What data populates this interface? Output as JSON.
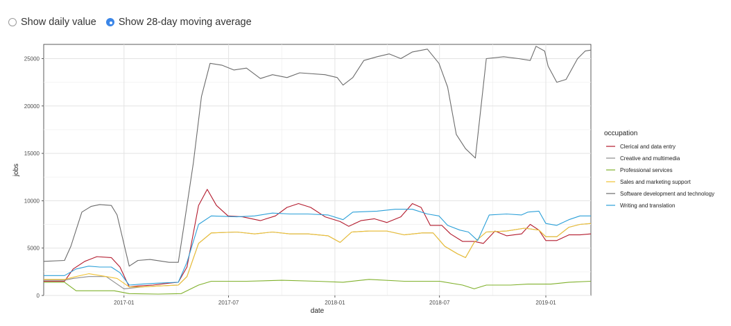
{
  "controls": {
    "options": [
      {
        "label": "Show daily value",
        "selected": false
      },
      {
        "label": "Show 28-day moving average",
        "selected": true
      }
    ]
  },
  "chart_data": {
    "type": "line",
    "xlabel": "date",
    "ylabel": "jobs",
    "legend_title": "occupation",
    "legend_position": "right",
    "grid": true,
    "xlim": [
      "2016-08-15",
      "2019-03-20"
    ],
    "ylim": [
      0,
      26500
    ],
    "x_ticks": [
      {
        "value": "2017-01-01",
        "label": "2017-01"
      },
      {
        "value": "2017-07-01",
        "label": "2017-07"
      },
      {
        "value": "2018-01-01",
        "label": "2018-01"
      },
      {
        "value": "2018-07-01",
        "label": "2018-07"
      },
      {
        "value": "2019-01-01",
        "label": "2019-01"
      }
    ],
    "y_ticks": [
      0,
      5000,
      10000,
      15000,
      20000,
      25000
    ],
    "series": [
      {
        "name": "Clerical and data entry",
        "color": "#b2182b",
        "points": [
          [
            "2016-08-15",
            1500
          ],
          [
            "2016-09-20",
            1500
          ],
          [
            "2016-10-05",
            2800
          ],
          [
            "2016-10-25",
            3600
          ],
          [
            "2016-11-15",
            4100
          ],
          [
            "2016-12-10",
            4000
          ],
          [
            "2016-12-25",
            3000
          ],
          [
            "2017-01-10",
            900
          ],
          [
            "2017-01-25",
            1000
          ],
          [
            "2017-02-20",
            1100
          ],
          [
            "2017-03-20",
            1300
          ],
          [
            "2017-04-05",
            1400
          ],
          [
            "2017-04-20",
            3000
          ],
          [
            "2017-05-10",
            9500
          ],
          [
            "2017-05-25",
            11200
          ],
          [
            "2017-06-10",
            9500
          ],
          [
            "2017-06-30",
            8400
          ],
          [
            "2017-07-25",
            8300
          ],
          [
            "2017-08-25",
            7900
          ],
          [
            "2017-09-20",
            8400
          ],
          [
            "2017-10-10",
            9300
          ],
          [
            "2017-10-30",
            9700
          ],
          [
            "2017-11-20",
            9300
          ],
          [
            "2017-12-15",
            8300
          ],
          [
            "2018-01-10",
            7800
          ],
          [
            "2018-01-25",
            7300
          ],
          [
            "2018-02-15",
            7900
          ],
          [
            "2018-03-10",
            8100
          ],
          [
            "2018-04-01",
            7700
          ],
          [
            "2018-04-25",
            8300
          ],
          [
            "2018-05-15",
            9700
          ],
          [
            "2018-05-30",
            9300
          ],
          [
            "2018-06-15",
            7400
          ],
          [
            "2018-07-05",
            7400
          ],
          [
            "2018-07-20",
            6500
          ],
          [
            "2018-08-10",
            5700
          ],
          [
            "2018-08-30",
            5700
          ],
          [
            "2018-09-15",
            5500
          ],
          [
            "2018-10-05",
            6800
          ],
          [
            "2018-10-25",
            6300
          ],
          [
            "2018-11-20",
            6500
          ],
          [
            "2018-12-05",
            7500
          ],
          [
            "2018-12-20",
            6900
          ],
          [
            "2019-01-01",
            5800
          ],
          [
            "2019-01-20",
            5800
          ],
          [
            "2019-02-10",
            6400
          ],
          [
            "2019-03-01",
            6400
          ],
          [
            "2019-03-20",
            6500
          ]
        ]
      },
      {
        "name": "Creative and multimedia",
        "color": "#8c8c8c",
        "points": [
          [
            "2016-08-15",
            1600
          ],
          [
            "2016-09-20",
            1600
          ],
          [
            "2016-10-05",
            1800
          ],
          [
            "2016-11-01",
            2000
          ],
          [
            "2016-12-01",
            2000
          ],
          [
            "2017-01-01",
            700
          ],
          [
            "2017-02-01",
            900
          ],
          [
            "2017-03-01",
            1000
          ],
          [
            "2017-04-05",
            1100
          ],
          [
            "2017-04-20",
            2000
          ],
          [
            "2017-05-10",
            5500
          ],
          [
            "2017-06-01",
            6600
          ],
          [
            "2017-07-15",
            6700
          ],
          [
            "2017-08-15",
            6500
          ],
          [
            "2017-09-15",
            6700
          ],
          [
            "2017-10-15",
            6500
          ],
          [
            "2017-11-15",
            6500
          ],
          [
            "2017-12-20",
            6300
          ],
          [
            "2018-01-10",
            5600
          ],
          [
            "2018-01-30",
            6700
          ],
          [
            "2018-03-01",
            6800
          ],
          [
            "2018-04-01",
            6800
          ],
          [
            "2018-05-01",
            6400
          ],
          [
            "2018-06-01",
            6600
          ],
          [
            "2018-06-20",
            6600
          ],
          [
            "2018-07-10",
            5200
          ],
          [
            "2018-08-01",
            4400
          ],
          [
            "2018-08-15",
            4000
          ],
          [
            "2018-08-30",
            5600
          ],
          [
            "2018-09-20",
            6700
          ],
          [
            "2018-10-25",
            6800
          ],
          [
            "2018-11-25",
            7100
          ],
          [
            "2018-12-20",
            6900
          ],
          [
            "2019-01-01",
            6200
          ],
          [
            "2019-01-20",
            6200
          ],
          [
            "2019-02-10",
            7200
          ],
          [
            "2019-03-01",
            7500
          ],
          [
            "2019-03-20",
            7600
          ]
        ]
      },
      {
        "name": "Professional services",
        "color": "#7fb02a",
        "points": [
          [
            "2016-08-15",
            1400
          ],
          [
            "2016-09-20",
            1400
          ],
          [
            "2016-10-10",
            500
          ],
          [
            "2016-12-15",
            500
          ],
          [
            "2017-01-10",
            200
          ],
          [
            "2017-03-01",
            150
          ],
          [
            "2017-04-10",
            200
          ],
          [
            "2017-05-10",
            1100
          ],
          [
            "2017-06-01",
            1500
          ],
          [
            "2017-08-01",
            1500
          ],
          [
            "2017-10-01",
            1600
          ],
          [
            "2017-12-01",
            1500
          ],
          [
            "2018-01-15",
            1400
          ],
          [
            "2018-03-01",
            1700
          ],
          [
            "2018-05-01",
            1500
          ],
          [
            "2018-07-01",
            1500
          ],
          [
            "2018-08-10",
            1100
          ],
          [
            "2018-08-30",
            700
          ],
          [
            "2018-09-20",
            1100
          ],
          [
            "2018-11-01",
            1100
          ],
          [
            "2018-12-01",
            1200
          ],
          [
            "2019-01-10",
            1200
          ],
          [
            "2019-02-10",
            1400
          ],
          [
            "2019-03-20",
            1500
          ]
        ]
      },
      {
        "name": "Sales and marketing support",
        "color": "#f1c232",
        "points": [
          [
            "2016-08-15",
            1700
          ],
          [
            "2016-09-20",
            1700
          ],
          [
            "2016-10-10",
            2000
          ],
          [
            "2016-11-01",
            2300
          ],
          [
            "2016-12-01",
            2000
          ],
          [
            "2016-12-20",
            1800
          ],
          [
            "2017-01-10",
            900
          ],
          [
            "2017-02-01",
            900
          ],
          [
            "2017-03-01",
            1000
          ],
          [
            "2017-04-05",
            1100
          ],
          [
            "2017-04-20",
            2000
          ],
          [
            "2017-05-10",
            5500
          ],
          [
            "2017-06-01",
            6600
          ],
          [
            "2017-07-15",
            6700
          ],
          [
            "2017-08-15",
            6500
          ],
          [
            "2017-09-15",
            6700
          ],
          [
            "2017-10-15",
            6500
          ],
          [
            "2017-11-15",
            6500
          ],
          [
            "2017-12-20",
            6300
          ],
          [
            "2018-01-10",
            5600
          ],
          [
            "2018-01-30",
            6700
          ],
          [
            "2018-03-01",
            6800
          ],
          [
            "2018-04-01",
            6800
          ],
          [
            "2018-05-01",
            6400
          ],
          [
            "2018-06-01",
            6600
          ],
          [
            "2018-06-20",
            6600
          ],
          [
            "2018-07-10",
            5200
          ],
          [
            "2018-08-01",
            4400
          ],
          [
            "2018-08-15",
            4000
          ],
          [
            "2018-08-30",
            5600
          ],
          [
            "2018-09-20",
            6700
          ],
          [
            "2018-10-25",
            6800
          ],
          [
            "2018-11-25",
            7100
          ],
          [
            "2018-12-20",
            6900
          ],
          [
            "2019-01-01",
            6200
          ],
          [
            "2019-01-20",
            6200
          ],
          [
            "2019-02-10",
            7200
          ],
          [
            "2019-03-01",
            7500
          ],
          [
            "2019-03-20",
            7600
          ]
        ]
      },
      {
        "name": "Software development and technology",
        "color": "#6b6b6b",
        "points": [
          [
            "2016-08-15",
            3600
          ],
          [
            "2016-09-20",
            3700
          ],
          [
            "2016-10-01",
            5200
          ],
          [
            "2016-10-20",
            8800
          ],
          [
            "2016-11-05",
            9400
          ],
          [
            "2016-11-20",
            9600
          ],
          [
            "2016-12-10",
            9500
          ],
          [
            "2016-12-20",
            8500
          ],
          [
            "2017-01-10",
            3100
          ],
          [
            "2017-01-25",
            3700
          ],
          [
            "2017-02-15",
            3800
          ],
          [
            "2017-03-20",
            3500
          ],
          [
            "2017-04-05",
            3500
          ],
          [
            "2017-04-15",
            7500
          ],
          [
            "2017-05-01",
            14000
          ],
          [
            "2017-05-15",
            21000
          ],
          [
            "2017-05-30",
            24500
          ],
          [
            "2017-06-20",
            24300
          ],
          [
            "2017-07-10",
            23800
          ],
          [
            "2017-08-01",
            24000
          ],
          [
            "2017-08-25",
            22900
          ],
          [
            "2017-09-15",
            23300
          ],
          [
            "2017-10-10",
            23000
          ],
          [
            "2017-11-01",
            23500
          ],
          [
            "2017-12-15",
            23300
          ],
          [
            "2018-01-05",
            23000
          ],
          [
            "2018-01-15",
            22200
          ],
          [
            "2018-02-01",
            23000
          ],
          [
            "2018-02-20",
            24800
          ],
          [
            "2018-03-15",
            25200
          ],
          [
            "2018-04-05",
            25500
          ],
          [
            "2018-04-25",
            25000
          ],
          [
            "2018-05-15",
            25700
          ],
          [
            "2018-06-10",
            26000
          ],
          [
            "2018-06-30",
            24500
          ],
          [
            "2018-07-15",
            22000
          ],
          [
            "2018-07-30",
            17000
          ],
          [
            "2018-08-15",
            15500
          ],
          [
            "2018-09-01",
            14500
          ],
          [
            "2018-09-20",
            25000
          ],
          [
            "2018-10-20",
            25200
          ],
          [
            "2018-11-15",
            25000
          ],
          [
            "2018-12-05",
            24800
          ],
          [
            "2018-12-15",
            26300
          ],
          [
            "2018-12-30",
            25800
          ],
          [
            "2019-01-05",
            24200
          ],
          [
            "2019-01-20",
            22500
          ],
          [
            "2019-02-05",
            22800
          ],
          [
            "2019-02-25",
            25000
          ],
          [
            "2019-03-10",
            25800
          ],
          [
            "2019-03-20",
            25900
          ]
        ]
      },
      {
        "name": "Writing and translation",
        "color": "#2a9fd8",
        "points": [
          [
            "2016-08-15",
            2100
          ],
          [
            "2016-09-20",
            2100
          ],
          [
            "2016-10-10",
            2800
          ],
          [
            "2016-11-01",
            3100
          ],
          [
            "2016-11-20",
            3000
          ],
          [
            "2016-12-10",
            3000
          ],
          [
            "2016-12-25",
            2400
          ],
          [
            "2017-01-10",
            1100
          ],
          [
            "2017-02-01",
            1200
          ],
          [
            "2017-03-01",
            1300
          ],
          [
            "2017-04-05",
            1400
          ],
          [
            "2017-04-20",
            3500
          ],
          [
            "2017-05-10",
            7500
          ],
          [
            "2017-06-01",
            8400
          ],
          [
            "2017-07-15",
            8300
          ],
          [
            "2017-08-15",
            8400
          ],
          [
            "2017-09-15",
            8700
          ],
          [
            "2017-10-15",
            8600
          ],
          [
            "2017-11-15",
            8600
          ],
          [
            "2017-12-20",
            8500
          ],
          [
            "2018-01-15",
            8000
          ],
          [
            "2018-02-01",
            8800
          ],
          [
            "2018-03-15",
            8900
          ],
          [
            "2018-04-15",
            9100
          ],
          [
            "2018-05-15",
            9100
          ],
          [
            "2018-06-10",
            8600
          ],
          [
            "2018-06-30",
            8400
          ],
          [
            "2018-07-15",
            7400
          ],
          [
            "2018-08-05",
            6900
          ],
          [
            "2018-08-20",
            6700
          ],
          [
            "2018-09-05",
            5800
          ],
          [
            "2018-09-25",
            8500
          ],
          [
            "2018-10-25",
            8600
          ],
          [
            "2018-11-20",
            8500
          ],
          [
            "2018-12-01",
            8800
          ],
          [
            "2018-12-20",
            8900
          ],
          [
            "2019-01-01",
            7600
          ],
          [
            "2019-01-20",
            7400
          ],
          [
            "2019-02-10",
            8000
          ],
          [
            "2019-03-01",
            8400
          ],
          [
            "2019-03-20",
            8400
          ]
        ]
      }
    ]
  }
}
